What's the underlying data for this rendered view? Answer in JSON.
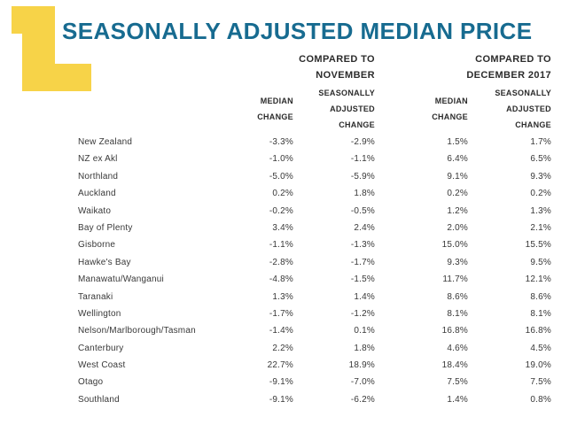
{
  "title": "SEASONALLY ADJUSTED MEDIAN PRICE",
  "colors": {
    "accent_teal": "#176b90",
    "accent_yellow": "#f7d348",
    "text": "#383838",
    "header_text": "#2b2b2b"
  },
  "logo": "yellow-l-block",
  "table": {
    "groups": [
      {
        "line1": "COMPARED TO",
        "line2": "NOVEMBER"
      },
      {
        "line1": "COMPARED TO",
        "line2": "DECEMBER 2017"
      }
    ],
    "subheaders": {
      "median": [
        "MEDIAN",
        "CHANGE"
      ],
      "seasonal": [
        "SEASONALLY",
        "ADJUSTED",
        "CHANGE"
      ]
    },
    "rows": [
      {
        "region": "New Zealand",
        "nov_median": "-3.3%",
        "nov_seasonal": "-2.9%",
        "dec2017_median": "1.5%",
        "dec2017_seasonal": "1.7%"
      },
      {
        "region": "NZ ex Akl",
        "nov_median": "-1.0%",
        "nov_seasonal": "-1.1%",
        "dec2017_median": "6.4%",
        "dec2017_seasonal": "6.5%"
      },
      {
        "region": "Northland",
        "nov_median": "-5.0%",
        "nov_seasonal": "-5.9%",
        "dec2017_median": "9.1%",
        "dec2017_seasonal": "9.3%"
      },
      {
        "region": "Auckland",
        "nov_median": "0.2%",
        "nov_seasonal": "1.8%",
        "dec2017_median": "0.2%",
        "dec2017_seasonal": "0.2%"
      },
      {
        "region": "Waikato",
        "nov_median": "-0.2%",
        "nov_seasonal": "-0.5%",
        "dec2017_median": "1.2%",
        "dec2017_seasonal": "1.3%"
      },
      {
        "region": "Bay of Plenty",
        "nov_median": "3.4%",
        "nov_seasonal": "2.4%",
        "dec2017_median": "2.0%",
        "dec2017_seasonal": "2.1%"
      },
      {
        "region": "Gisborne",
        "nov_median": "-1.1%",
        "nov_seasonal": "-1.3%",
        "dec2017_median": "15.0%",
        "dec2017_seasonal": "15.5%"
      },
      {
        "region": "Hawke's Bay",
        "nov_median": "-2.8%",
        "nov_seasonal": "-1.7%",
        "dec2017_median": "9.3%",
        "dec2017_seasonal": "9.5%"
      },
      {
        "region": "Manawatu/Wanganui",
        "nov_median": "-4.8%",
        "nov_seasonal": "-1.5%",
        "dec2017_median": "11.7%",
        "dec2017_seasonal": "12.1%"
      },
      {
        "region": "Taranaki",
        "nov_median": "1.3%",
        "nov_seasonal": "1.4%",
        "dec2017_median": "8.6%",
        "dec2017_seasonal": "8.6%"
      },
      {
        "region": "Wellington",
        "nov_median": "-1.7%",
        "nov_seasonal": "-1.2%",
        "dec2017_median": "8.1%",
        "dec2017_seasonal": "8.1%"
      },
      {
        "region": "Nelson/Marlborough/Tasman",
        "nov_median": "-1.4%",
        "nov_seasonal": "0.1%",
        "dec2017_median": "16.8%",
        "dec2017_seasonal": "16.8%"
      },
      {
        "region": "Canterbury",
        "nov_median": "2.2%",
        "nov_seasonal": "1.8%",
        "dec2017_median": "4.6%",
        "dec2017_seasonal": "4.5%"
      },
      {
        "region": "West Coast",
        "nov_median": "22.7%",
        "nov_seasonal": "18.9%",
        "dec2017_median": "18.4%",
        "dec2017_seasonal": "19.0%"
      },
      {
        "region": "Otago",
        "nov_median": "-9.1%",
        "nov_seasonal": "-7.0%",
        "dec2017_median": "7.5%",
        "dec2017_seasonal": "7.5%"
      },
      {
        "region": "Southland",
        "nov_median": "-9.1%",
        "nov_seasonal": "-6.2%",
        "dec2017_median": "1.4%",
        "dec2017_seasonal": "0.8%"
      }
    ]
  }
}
